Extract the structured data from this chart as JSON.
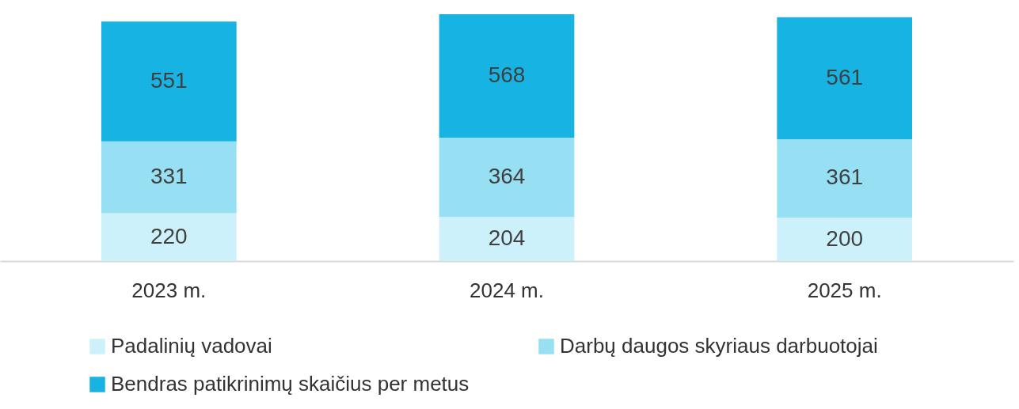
{
  "chart_data": {
    "type": "bar",
    "stacked": true,
    "categories": [
      "2023 m.",
      "2024 m.",
      "2025 m."
    ],
    "series": [
      {
        "name": "Padalinių vadovai",
        "color": "#cdf1fb",
        "values": [
          220,
          204,
          200
        ]
      },
      {
        "name": "Darbų daugos skyriaus darbuotojai",
        "color": "#97dff3",
        "values": [
          331,
          364,
          361
        ]
      },
      {
        "name": "Bendras patikrinimų skaičius per metus",
        "color": "#17b3e2",
        "values": [
          551,
          568,
          561
        ]
      }
    ],
    "data_labels": true,
    "legend": "bottom",
    "grid": false
  }
}
